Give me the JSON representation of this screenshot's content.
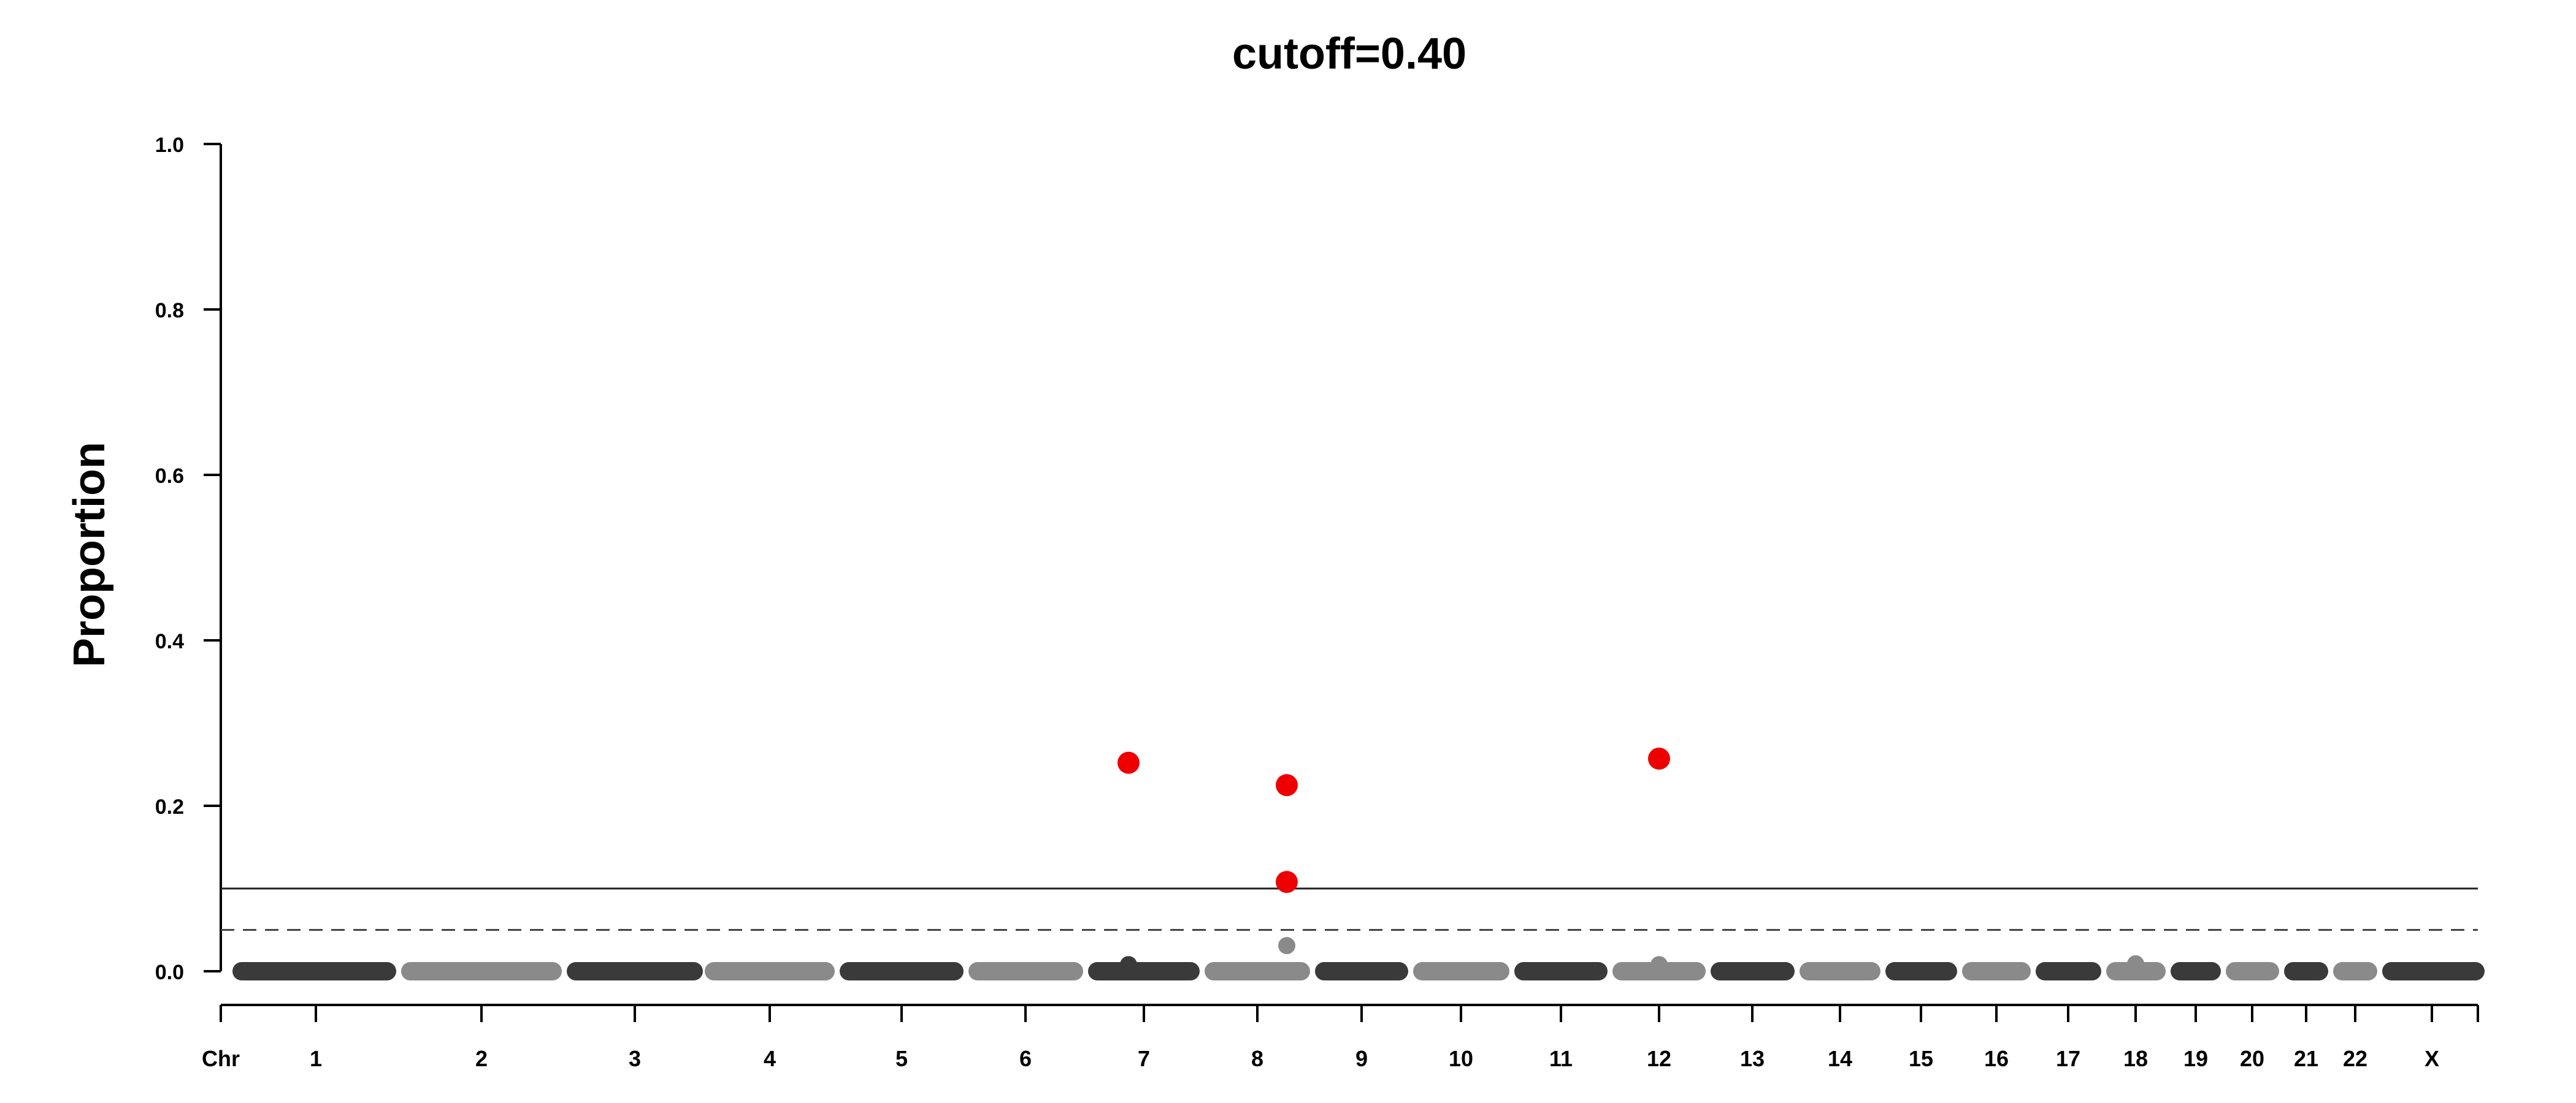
{
  "chart_data": {
    "type": "scatter",
    "title": "cutoff=0.40",
    "xlabel": "",
    "ylabel": "Proportion",
    "x_axis_prefix": "Chr",
    "ylim": [
      0,
      1.0
    ],
    "y_ticks": [
      "0.0",
      "0.2",
      "0.4",
      "0.6",
      "0.8",
      "1.0"
    ],
    "grid": false,
    "legend": "none",
    "reference_lines": [
      {
        "y": 0.1,
        "style": "solid"
      },
      {
        "y": 0.05,
        "style": "dashed"
      }
    ],
    "colors": {
      "dark": "#3a3a3a",
      "light": "#8a8a8a",
      "highlight": "#ee0000"
    },
    "chromosomes": [
      {
        "name": "1",
        "shade": "dark"
      },
      {
        "name": "2",
        "shade": "light"
      },
      {
        "name": "3",
        "shade": "dark"
      },
      {
        "name": "4",
        "shade": "light"
      },
      {
        "name": "5",
        "shade": "dark"
      },
      {
        "name": "6",
        "shade": "light"
      },
      {
        "name": "7",
        "shade": "dark"
      },
      {
        "name": "8",
        "shade": "light"
      },
      {
        "name": "9",
        "shade": "dark"
      },
      {
        "name": "10",
        "shade": "light"
      },
      {
        "name": "11",
        "shade": "dark"
      },
      {
        "name": "12",
        "shade": "light"
      },
      {
        "name": "13",
        "shade": "dark"
      },
      {
        "name": "14",
        "shade": "light"
      },
      {
        "name": "15",
        "shade": "dark"
      },
      {
        "name": "16",
        "shade": "light"
      },
      {
        "name": "17",
        "shade": "dark"
      },
      {
        "name": "18",
        "shade": "light"
      },
      {
        "name": "19",
        "shade": "dark"
      },
      {
        "name": "20",
        "shade": "light"
      },
      {
        "name": "21",
        "shade": "dark"
      },
      {
        "name": "22",
        "shade": "light"
      },
      {
        "name": "X",
        "shade": "dark"
      }
    ],
    "points_above_baseline": [
      {
        "chr": "7",
        "y": 0.008,
        "color": "dark"
      },
      {
        "chr": "8",
        "y": 0.031,
        "color": "light"
      },
      {
        "chr": "12",
        "y": 0.008,
        "color": "light"
      },
      {
        "chr": "18",
        "y": 0.009,
        "color": "light"
      },
      {
        "chr": "7",
        "y": 0.252,
        "color": "highlight"
      },
      {
        "chr": "8",
        "y": 0.225,
        "color": "highlight"
      },
      {
        "chr": "8",
        "y": 0.108,
        "color": "highlight"
      },
      {
        "chr": "12",
        "y": 0.257,
        "color": "highlight"
      }
    ]
  }
}
